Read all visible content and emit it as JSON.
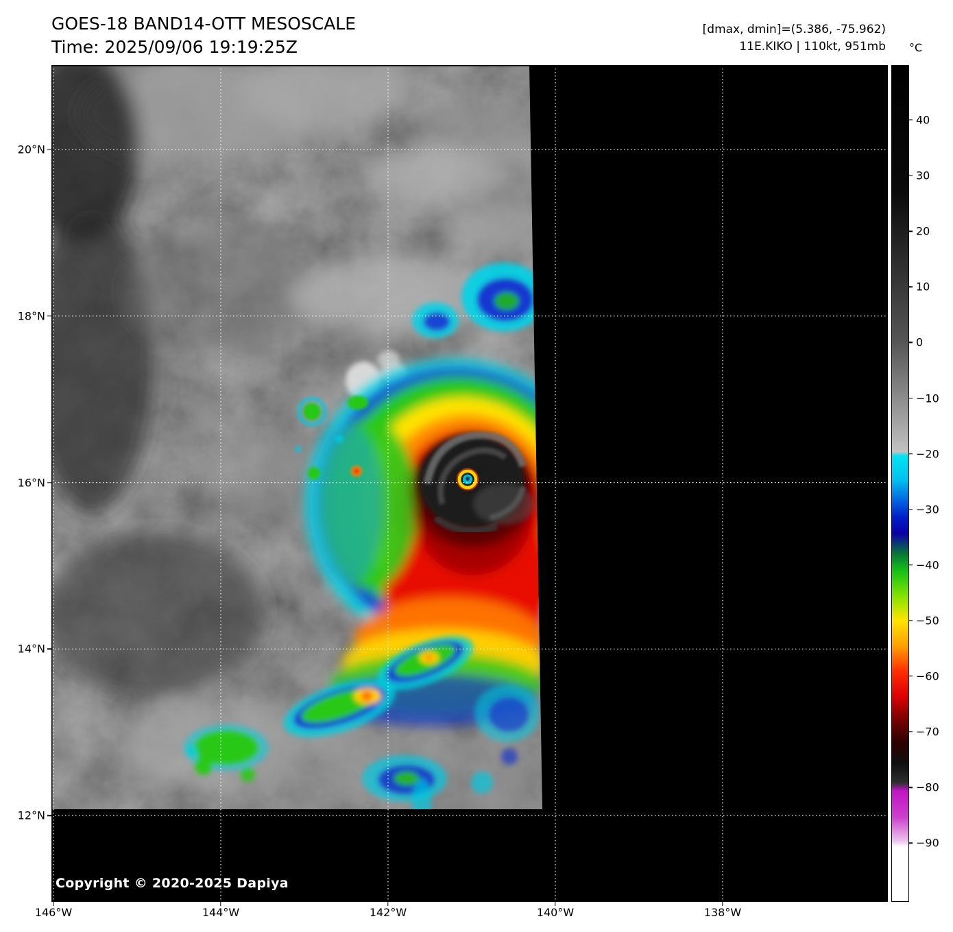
{
  "header": {
    "title": "GOES-18 BAND14-OTT MESOSCALE",
    "time": "Time: 2025/09/06 19:19:25Z",
    "dmax_dmin": "[dmax, dmin]=(5.386, -75.962)",
    "storm": "11E.KIKO | 110kt, 951mb"
  },
  "colorbar": {
    "unit": "°C",
    "ticks": [
      "40",
      "30",
      "20",
      "10",
      "0",
      "−10",
      "−20",
      "−30",
      "−40",
      "−50",
      "−60",
      "−70",
      "−80",
      "−90"
    ],
    "colors": {
      "warm_black": "#000000",
      "mid_gray": "#9e9e9e",
      "cyan_minus20": "#00e4f2",
      "blue_minus30": "#0020c8",
      "green_minus40": "#16c214",
      "yellow_minus50": "#ffe400",
      "red_minus60": "#dc0000",
      "dark_red_minus70": "#700000",
      "magenta_minus85": "#c214c6",
      "white_below_minus90": "#ffffff"
    }
  },
  "axes": {
    "lat_labels": [
      "20°N",
      "18°N",
      "16°N",
      "14°N",
      "12°N"
    ],
    "lon_labels": [
      "146°W",
      "144°W",
      "142°W",
      "140°W",
      "138°W"
    ]
  },
  "copyright": "Copyright © 2020-2025 Dapiya"
}
